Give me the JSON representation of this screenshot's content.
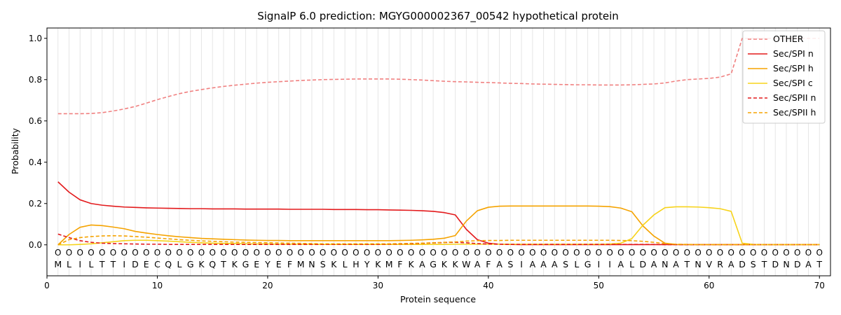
{
  "chart_data": {
    "type": "line",
    "title": "SignalP 6.0 prediction: MGYG000002367_00542 hypothetical protein",
    "xlabel": "Protein sequence",
    "ylabel": "Probability",
    "xlim": [
      0,
      71
    ],
    "ylim": [
      -0.15,
      1.05
    ],
    "xticks": [
      0,
      10,
      20,
      30,
      40,
      50,
      60,
      70
    ],
    "yticks": [
      0.0,
      0.2,
      0.4,
      0.6,
      0.8,
      1.0
    ],
    "sequence": [
      "M",
      "L",
      "I",
      "L",
      "T",
      "T",
      "I",
      "D",
      "E",
      "C",
      "Q",
      "L",
      "G",
      "K",
      "Q",
      "T",
      "K",
      "G",
      "E",
      "Y",
      "E",
      "F",
      "M",
      "N",
      "S",
      "K",
      "L",
      "H",
      "Y",
      "K",
      "M",
      "F",
      "K",
      "A",
      "G",
      "K",
      "K",
      "W",
      "A",
      "F",
      "A",
      "S",
      "I",
      "A",
      "A",
      "A",
      "S",
      "L",
      "G",
      "I",
      "I",
      "A",
      "L",
      "D",
      "A",
      "N",
      "A",
      "T",
      "N",
      "V",
      "R",
      "A",
      "D",
      "S",
      "T",
      "D",
      "N",
      "D",
      "A",
      "T"
    ],
    "region_marker": "O",
    "legend_position": "top-right",
    "grid": "vertical",
    "series": [
      {
        "name": "OTHER",
        "color": "#f08080",
        "dash": true,
        "values": [
          0.635,
          0.635,
          0.635,
          0.636,
          0.64,
          0.648,
          0.658,
          0.67,
          0.686,
          0.703,
          0.718,
          0.732,
          0.743,
          0.752,
          0.76,
          0.767,
          0.773,
          0.778,
          0.783,
          0.787,
          0.79,
          0.793,
          0.796,
          0.798,
          0.8,
          0.801,
          0.802,
          0.803,
          0.803,
          0.803,
          0.803,
          0.802,
          0.8,
          0.798,
          0.795,
          0.792,
          0.79,
          0.789,
          0.787,
          0.786,
          0.784,
          0.782,
          0.781,
          0.779,
          0.778,
          0.777,
          0.776,
          0.775,
          0.775,
          0.774,
          0.774,
          0.774,
          0.775,
          0.777,
          0.779,
          0.784,
          0.793,
          0.8,
          0.803,
          0.806,
          0.812,
          0.828,
          1.0,
          1.0,
          1.0,
          1.0,
          1.0,
          1.0,
          1.0,
          1.0
        ]
      },
      {
        "name": "Sec/SPI n",
        "color": "#e31a1c",
        "dash": false,
        "values": [
          0.305,
          0.255,
          0.218,
          0.2,
          0.192,
          0.187,
          0.183,
          0.181,
          0.179,
          0.178,
          0.177,
          0.176,
          0.175,
          0.175,
          0.174,
          0.174,
          0.174,
          0.173,
          0.173,
          0.173,
          0.173,
          0.172,
          0.172,
          0.172,
          0.172,
          0.171,
          0.171,
          0.171,
          0.17,
          0.17,
          0.169,
          0.168,
          0.167,
          0.165,
          0.162,
          0.156,
          0.145,
          0.075,
          0.025,
          0.008,
          0.003,
          0.002,
          0.001,
          0.001,
          0.001,
          0.001,
          0.001,
          0.001,
          0.001,
          0.001,
          0.001,
          0.001,
          0.001,
          0.001,
          0.001,
          0.001,
          0.001,
          0.001,
          0.001,
          0.001,
          0.001,
          0.001,
          0.001,
          0.001,
          0.001,
          0.001,
          0.001,
          0.001,
          0.001,
          0.001
        ]
      },
      {
        "name": "Sec/SPI h",
        "color": "#f5a300",
        "dash": false,
        "values": [
          0.0,
          0.05,
          0.085,
          0.096,
          0.093,
          0.086,
          0.078,
          0.065,
          0.057,
          0.05,
          0.044,
          0.039,
          0.035,
          0.031,
          0.029,
          0.027,
          0.025,
          0.023,
          0.022,
          0.021,
          0.021,
          0.02,
          0.02,
          0.02,
          0.02,
          0.02,
          0.02,
          0.02,
          0.02,
          0.02,
          0.02,
          0.021,
          0.022,
          0.024,
          0.027,
          0.032,
          0.045,
          0.115,
          0.165,
          0.182,
          0.187,
          0.188,
          0.188,
          0.188,
          0.188,
          0.188,
          0.188,
          0.188,
          0.188,
          0.187,
          0.185,
          0.178,
          0.16,
          0.092,
          0.042,
          0.008,
          0.002,
          0.001,
          0.001,
          0.001,
          0.001,
          0.001,
          0.001,
          0.001,
          0.001,
          0.001,
          0.001,
          0.001,
          0.001,
          0.001
        ]
      },
      {
        "name": "Sec/SPI c",
        "color": "#f7d31a",
        "dash": false,
        "values": [
          0.0,
          0.0,
          0.002,
          0.005,
          0.01,
          0.015,
          0.02,
          0.022,
          0.022,
          0.02,
          0.018,
          0.015,
          0.012,
          0.01,
          0.008,
          0.007,
          0.006,
          0.005,
          0.004,
          0.004,
          0.003,
          0.003,
          0.003,
          0.003,
          0.002,
          0.002,
          0.002,
          0.002,
          0.002,
          0.002,
          0.002,
          0.002,
          0.002,
          0.002,
          0.002,
          0.002,
          0.003,
          0.003,
          0.003,
          0.003,
          0.003,
          0.003,
          0.003,
          0.003,
          0.003,
          0.003,
          0.003,
          0.003,
          0.003,
          0.003,
          0.004,
          0.008,
          0.03,
          0.095,
          0.145,
          0.18,
          0.184,
          0.184,
          0.183,
          0.18,
          0.175,
          0.162,
          0.008,
          0.002,
          0.001,
          0.001,
          0.001,
          0.001,
          0.001,
          0.001
        ]
      },
      {
        "name": "Sec/SPII n",
        "color": "#e31a1c",
        "dash": true,
        "values": [
          0.052,
          0.035,
          0.02,
          0.012,
          0.008,
          0.006,
          0.005,
          0.004,
          0.003,
          0.003,
          0.002,
          0.002,
          0.002,
          0.002,
          0.002,
          0.002,
          0.002,
          0.002,
          0.002,
          0.002,
          0.002,
          0.002,
          0.002,
          0.002,
          0.002,
          0.002,
          0.002,
          0.002,
          0.002,
          0.002,
          0.003,
          0.004,
          0.005,
          0.007,
          0.009,
          0.011,
          0.012,
          0.01,
          0.006,
          0.004,
          0.003,
          0.002,
          0.002,
          0.002,
          0.002,
          0.002,
          0.002,
          0.002,
          0.002,
          0.002,
          0.002,
          0.002,
          0.002,
          0.002,
          0.002,
          0.001,
          0.001,
          0.001,
          0.001,
          0.001,
          0.001,
          0.001,
          0.001,
          0.001,
          0.001,
          0.001,
          0.001,
          0.001,
          0.001,
          0.001
        ]
      },
      {
        "name": "Sec/SPII h",
        "color": "#f5a300",
        "dash": true,
        "values": [
          0.0,
          0.025,
          0.035,
          0.04,
          0.043,
          0.044,
          0.043,
          0.04,
          0.037,
          0.033,
          0.029,
          0.025,
          0.022,
          0.019,
          0.017,
          0.015,
          0.013,
          0.012,
          0.011,
          0.01,
          0.009,
          0.008,
          0.007,
          0.006,
          0.005,
          0.005,
          0.005,
          0.005,
          0.005,
          0.005,
          0.005,
          0.006,
          0.007,
          0.008,
          0.01,
          0.012,
          0.014,
          0.018,
          0.02,
          0.021,
          0.021,
          0.022,
          0.022,
          0.022,
          0.022,
          0.022,
          0.022,
          0.022,
          0.022,
          0.022,
          0.022,
          0.021,
          0.02,
          0.017,
          0.012,
          0.006,
          0.003,
          0.002,
          0.001,
          0.001,
          0.001,
          0.001,
          0.001,
          0.001,
          0.001,
          0.001,
          0.001,
          0.001,
          0.001,
          0.001
        ]
      }
    ]
  }
}
